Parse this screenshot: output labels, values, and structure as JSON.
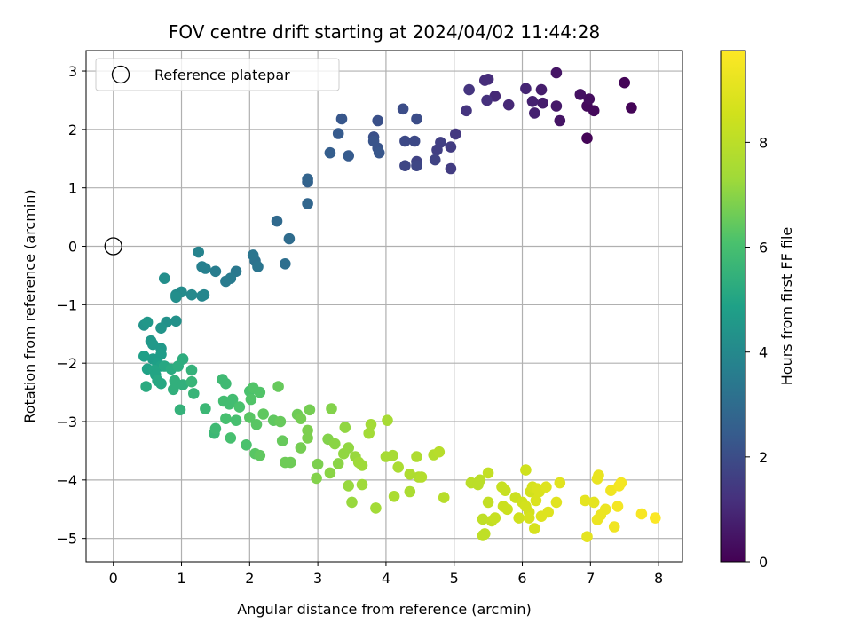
{
  "chart_data": {
    "type": "scatter",
    "title": "FOV centre drift starting at 2024/04/02 11:44:28",
    "xlabel": "Angular distance from reference (arcmin)",
    "ylabel": "Rotation from reference (arcmin)",
    "colorbar_label": "Hours from first FF file",
    "colormap": "viridis",
    "color_range": [
      0,
      9.75
    ],
    "colorbar_ticks": [
      0,
      2,
      4,
      6,
      8
    ],
    "xlim": [
      -0.4,
      8.35
    ],
    "ylim": [
      -5.4,
      3.35
    ],
    "xticks": [
      0,
      1,
      2,
      3,
      4,
      5,
      6,
      7,
      8
    ],
    "yticks": [
      -5,
      -4,
      -3,
      -2,
      -1,
      0,
      1,
      2,
      3
    ],
    "grid": true,
    "legend": {
      "placement": "top-left",
      "entries": [
        "Reference platepar"
      ]
    },
    "reference_point": {
      "x": 0,
      "y": 0
    },
    "series": [
      {
        "marker": "filled circle, colored by hours",
        "points": [
          [
            6.95,
            1.85,
            0.1
          ],
          [
            7.5,
            2.8,
            0.1
          ],
          [
            7.6,
            2.37,
            0.1
          ],
          [
            7.05,
            2.32,
            0.2
          ],
          [
            6.95,
            2.4,
            0.2
          ],
          [
            6.98,
            2.52,
            0.3
          ],
          [
            6.85,
            2.6,
            0.4
          ],
          [
            6.5,
            2.97,
            0.5
          ],
          [
            6.55,
            2.15,
            0.5
          ],
          [
            6.5,
            2.4,
            0.6
          ],
          [
            6.28,
            2.68,
            0.7
          ],
          [
            6.3,
            2.45,
            0.7
          ],
          [
            6.18,
            2.28,
            0.8
          ],
          [
            6.15,
            2.48,
            0.8
          ],
          [
            6.05,
            2.7,
            0.9
          ],
          [
            5.8,
            2.42,
            1.0
          ],
          [
            5.6,
            2.57,
            1.0
          ],
          [
            5.5,
            2.86,
            1.1
          ],
          [
            5.45,
            2.84,
            1.1
          ],
          [
            5.48,
            2.5,
            1.2
          ],
          [
            5.22,
            2.68,
            1.3
          ],
          [
            5.18,
            2.32,
            1.3
          ],
          [
            5.02,
            1.92,
            1.4
          ],
          [
            4.95,
            1.7,
            1.5
          ],
          [
            4.95,
            1.33,
            1.5
          ],
          [
            4.8,
            1.78,
            1.6
          ],
          [
            4.75,
            1.65,
            1.6
          ],
          [
            4.72,
            1.48,
            1.7
          ],
          [
            4.45,
            1.45,
            1.7
          ],
          [
            4.45,
            1.38,
            1.8
          ],
          [
            4.28,
            1.38,
            1.8
          ],
          [
            4.28,
            1.8,
            1.9
          ],
          [
            4.42,
            1.8,
            1.9
          ],
          [
            4.45,
            2.18,
            2.0
          ],
          [
            4.25,
            2.35,
            2.0
          ],
          [
            3.88,
            2.15,
            2.1
          ],
          [
            3.82,
            1.87,
            2.1
          ],
          [
            3.82,
            1.8,
            2.2
          ],
          [
            3.88,
            1.68,
            2.2
          ],
          [
            3.9,
            1.6,
            2.3
          ],
          [
            3.35,
            2.18,
            2.3
          ],
          [
            3.3,
            1.93,
            2.4
          ],
          [
            3.45,
            1.55,
            2.4
          ],
          [
            3.18,
            1.6,
            2.5
          ],
          [
            2.85,
            1.1,
            2.6
          ],
          [
            2.85,
            1.15,
            2.7
          ],
          [
            2.85,
            0.73,
            2.8
          ],
          [
            2.4,
            0.43,
            2.9
          ],
          [
            2.58,
            0.13,
            3.0
          ],
          [
            2.52,
            -0.3,
            3.1
          ],
          [
            2.08,
            -0.25,
            3.2
          ],
          [
            2.05,
            -0.15,
            3.3
          ],
          [
            2.12,
            -0.35,
            3.3
          ],
          [
            1.8,
            -0.43,
            3.4
          ],
          [
            1.72,
            -0.55,
            3.5
          ],
          [
            1.65,
            -0.6,
            3.5
          ],
          [
            1.5,
            -0.43,
            3.6
          ],
          [
            1.3,
            -0.35,
            3.7
          ],
          [
            1.35,
            -0.38,
            3.7
          ],
          [
            1.25,
            -0.1,
            3.8
          ],
          [
            1.33,
            -0.83,
            3.9
          ],
          [
            1.3,
            -0.85,
            3.9
          ],
          [
            1.15,
            -0.83,
            4.0
          ],
          [
            1.0,
            -0.78,
            4.1
          ],
          [
            0.92,
            -0.83,
            4.1
          ],
          [
            0.75,
            -0.55,
            4.2
          ],
          [
            0.92,
            -0.87,
            4.2
          ],
          [
            0.92,
            -1.28,
            4.3
          ],
          [
            0.78,
            -1.3,
            4.3
          ],
          [
            0.7,
            -1.4,
            4.4
          ],
          [
            0.45,
            -1.35,
            4.4
          ],
          [
            0.5,
            -1.3,
            4.5
          ],
          [
            0.55,
            -1.62,
            4.5
          ],
          [
            0.58,
            -1.68,
            4.6
          ],
          [
            0.7,
            -1.75,
            4.6
          ],
          [
            0.7,
            -1.85,
            4.7
          ],
          [
            0.58,
            -1.93,
            4.7
          ],
          [
            0.45,
            -1.88,
            4.8
          ],
          [
            0.65,
            -2.0,
            4.8
          ],
          [
            0.7,
            -2.05,
            4.9
          ],
          [
            0.5,
            -2.1,
            4.9
          ],
          [
            0.6,
            -2.12,
            5.0
          ],
          [
            0.62,
            -2.2,
            5.0
          ],
          [
            0.75,
            -2.05,
            5.1
          ],
          [
            0.65,
            -2.3,
            5.1
          ],
          [
            0.7,
            -2.35,
            5.1
          ],
          [
            0.48,
            -2.4,
            5.2
          ],
          [
            0.85,
            -2.1,
            5.2
          ],
          [
            0.95,
            -2.05,
            5.3
          ],
          [
            1.02,
            -1.93,
            5.3
          ],
          [
            0.9,
            -2.3,
            5.4
          ],
          [
            1.02,
            -2.37,
            5.4
          ],
          [
            0.88,
            -2.45,
            5.4
          ],
          [
            0.98,
            -2.8,
            5.5
          ],
          [
            1.15,
            -2.12,
            5.5
          ],
          [
            1.15,
            -2.32,
            5.6
          ],
          [
            1.18,
            -2.52,
            5.6
          ],
          [
            1.35,
            -2.78,
            5.7
          ],
          [
            1.48,
            -3.2,
            5.7
          ],
          [
            1.5,
            -3.12,
            5.8
          ],
          [
            1.6,
            -2.28,
            5.8
          ],
          [
            1.65,
            -2.35,
            5.8
          ],
          [
            1.62,
            -2.65,
            5.9
          ],
          [
            1.7,
            -2.7,
            5.9
          ],
          [
            1.75,
            -2.62,
            5.9
          ],
          [
            1.65,
            -2.95,
            6.0
          ],
          [
            1.72,
            -3.28,
            6.0
          ],
          [
            1.8,
            -2.98,
            6.0
          ],
          [
            1.85,
            -2.75,
            6.1
          ],
          [
            1.95,
            -3.4,
            6.1
          ],
          [
            2.0,
            -2.48,
            6.1
          ],
          [
            2.05,
            -2.42,
            6.2
          ],
          [
            2.02,
            -2.62,
            6.2
          ],
          [
            2.15,
            -2.5,
            6.2
          ],
          [
            2.0,
            -2.93,
            6.3
          ],
          [
            2.1,
            -3.05,
            6.3
          ],
          [
            2.08,
            -3.55,
            6.3
          ],
          [
            2.15,
            -3.58,
            6.4
          ],
          [
            2.2,
            -2.87,
            6.4
          ],
          [
            2.35,
            -2.98,
            6.4
          ],
          [
            2.42,
            -2.4,
            6.5
          ],
          [
            2.45,
            -3.0,
            6.5
          ],
          [
            2.48,
            -3.33,
            6.5
          ],
          [
            2.52,
            -3.7,
            6.6
          ],
          [
            2.6,
            -3.7,
            6.6
          ],
          [
            2.7,
            -2.88,
            6.6
          ],
          [
            2.75,
            -2.95,
            6.7
          ],
          [
            2.75,
            -3.45,
            6.7
          ],
          [
            2.88,
            -2.8,
            6.7
          ],
          [
            2.85,
            -3.15,
            6.8
          ],
          [
            2.85,
            -3.28,
            6.8
          ],
          [
            3.0,
            -3.73,
            6.8
          ],
          [
            2.98,
            -3.97,
            6.9
          ],
          [
            3.15,
            -3.3,
            6.9
          ],
          [
            3.2,
            -2.78,
            6.9
          ],
          [
            3.18,
            -3.88,
            7.0
          ],
          [
            3.25,
            -3.38,
            7.0
          ],
          [
            3.3,
            -3.72,
            7.0
          ],
          [
            3.38,
            -3.55,
            7.1
          ],
          [
            3.4,
            -3.1,
            7.1
          ],
          [
            3.45,
            -3.45,
            7.1
          ],
          [
            3.45,
            -4.1,
            7.2
          ],
          [
            3.5,
            -4.38,
            7.2
          ],
          [
            3.55,
            -3.6,
            7.2
          ],
          [
            3.6,
            -3.7,
            7.3
          ],
          [
            3.65,
            -3.75,
            7.3
          ],
          [
            3.65,
            -4.08,
            7.3
          ],
          [
            3.75,
            -3.2,
            7.4
          ],
          [
            3.78,
            -3.05,
            7.4
          ],
          [
            3.85,
            -4.48,
            7.4
          ],
          [
            4.0,
            -3.6,
            7.5
          ],
          [
            4.02,
            -2.98,
            7.5
          ],
          [
            4.1,
            -3.58,
            7.5
          ],
          [
            4.12,
            -4.28,
            7.6
          ],
          [
            4.18,
            -3.78,
            7.6
          ],
          [
            4.35,
            -4.2,
            7.6
          ],
          [
            4.35,
            -3.9,
            7.7
          ],
          [
            4.45,
            -3.6,
            7.7
          ],
          [
            4.48,
            -3.95,
            7.7
          ],
          [
            4.52,
            -3.95,
            7.8
          ],
          [
            4.7,
            -3.57,
            7.8
          ],
          [
            4.78,
            -3.52,
            7.9
          ],
          [
            4.85,
            -4.3,
            7.9
          ],
          [
            5.25,
            -4.05,
            8.0
          ],
          [
            5.35,
            -4.08,
            8.0
          ],
          [
            5.38,
            -4.0,
            8.0
          ],
          [
            5.42,
            -4.67,
            8.1
          ],
          [
            5.42,
            -4.95,
            8.1
          ],
          [
            5.45,
            -4.92,
            8.1
          ],
          [
            5.5,
            -4.38,
            8.2
          ],
          [
            5.5,
            -3.88,
            8.2
          ],
          [
            5.55,
            -4.7,
            8.2
          ],
          [
            5.6,
            -4.65,
            8.3
          ],
          [
            5.7,
            -4.12,
            8.3
          ],
          [
            5.75,
            -4.18,
            8.3
          ],
          [
            5.72,
            -4.45,
            8.4
          ],
          [
            5.78,
            -4.5,
            8.4
          ],
          [
            5.9,
            -4.3,
            8.4
          ],
          [
            5.95,
            -4.65,
            8.5
          ],
          [
            6.0,
            -4.38,
            8.5
          ],
          [
            6.05,
            -3.83,
            8.5
          ],
          [
            6.05,
            -4.45,
            8.6
          ],
          [
            6.1,
            -4.55,
            8.6
          ],
          [
            6.12,
            -4.2,
            8.6
          ],
          [
            6.1,
            -4.65,
            8.7
          ],
          [
            6.15,
            -4.12,
            8.7
          ],
          [
            6.18,
            -4.83,
            8.7
          ],
          [
            6.2,
            -4.35,
            8.8
          ],
          [
            6.25,
            -4.2,
            8.8
          ],
          [
            6.22,
            -4.15,
            8.8
          ],
          [
            6.28,
            -4.62,
            8.9
          ],
          [
            6.35,
            -4.12,
            8.9
          ],
          [
            6.38,
            -4.55,
            8.9
          ],
          [
            6.5,
            -4.38,
            9.0
          ],
          [
            6.55,
            -4.05,
            9.0
          ],
          [
            6.92,
            -4.35,
            9.1
          ],
          [
            6.95,
            -4.97,
            9.1
          ],
          [
            7.05,
            -4.38,
            9.1
          ],
          [
            7.1,
            -3.98,
            9.2
          ],
          [
            7.12,
            -3.92,
            9.2
          ],
          [
            7.1,
            -4.68,
            9.3
          ],
          [
            7.15,
            -4.6,
            9.3
          ],
          [
            7.22,
            -4.5,
            9.3
          ],
          [
            7.3,
            -4.18,
            9.4
          ],
          [
            7.35,
            -4.8,
            9.4
          ],
          [
            7.4,
            -4.45,
            9.5
          ],
          [
            7.42,
            -4.1,
            9.5
          ],
          [
            7.45,
            -4.05,
            9.5
          ],
          [
            7.75,
            -4.58,
            9.6
          ],
          [
            7.95,
            -4.65,
            9.7
          ]
        ]
      }
    ]
  }
}
